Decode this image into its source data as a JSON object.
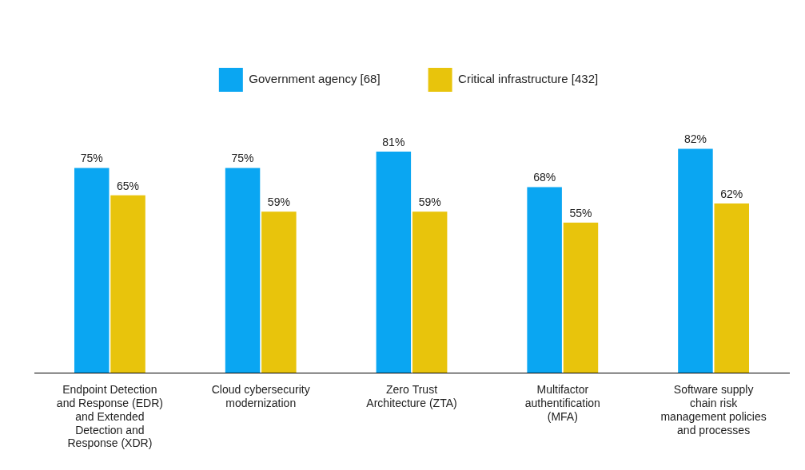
{
  "chart_data": {
    "type": "bar",
    "categories": [
      "Endpoint Detection and Response (EDR) and Extended Detection and Response (XDR)",
      "Cloud cybersecurity modernization",
      "Zero Trust Architecture (ZTA)",
      "Multifactor authentification (MFA)",
      "Software supply chain risk management policies and processes"
    ],
    "series": [
      {
        "name": "Government agency [68]",
        "color": "#0aa6f2",
        "values": [
          75,
          75,
          81,
          68,
          82
        ],
        "value_labels": [
          "75%",
          "75%",
          "81%",
          "68%",
          "82%"
        ]
      },
      {
        "name": "Critical infrastructure [432]",
        "color": "#e8c40c",
        "values": [
          65,
          59,
          59,
          55,
          62
        ],
        "value_labels": [
          "65%",
          "59%",
          "59%",
          "55%",
          "62%"
        ]
      }
    ],
    "ylim": [
      0,
      100
    ],
    "grid": false,
    "legend": "top",
    "data_labels": true,
    "tick_labels": "x"
  }
}
